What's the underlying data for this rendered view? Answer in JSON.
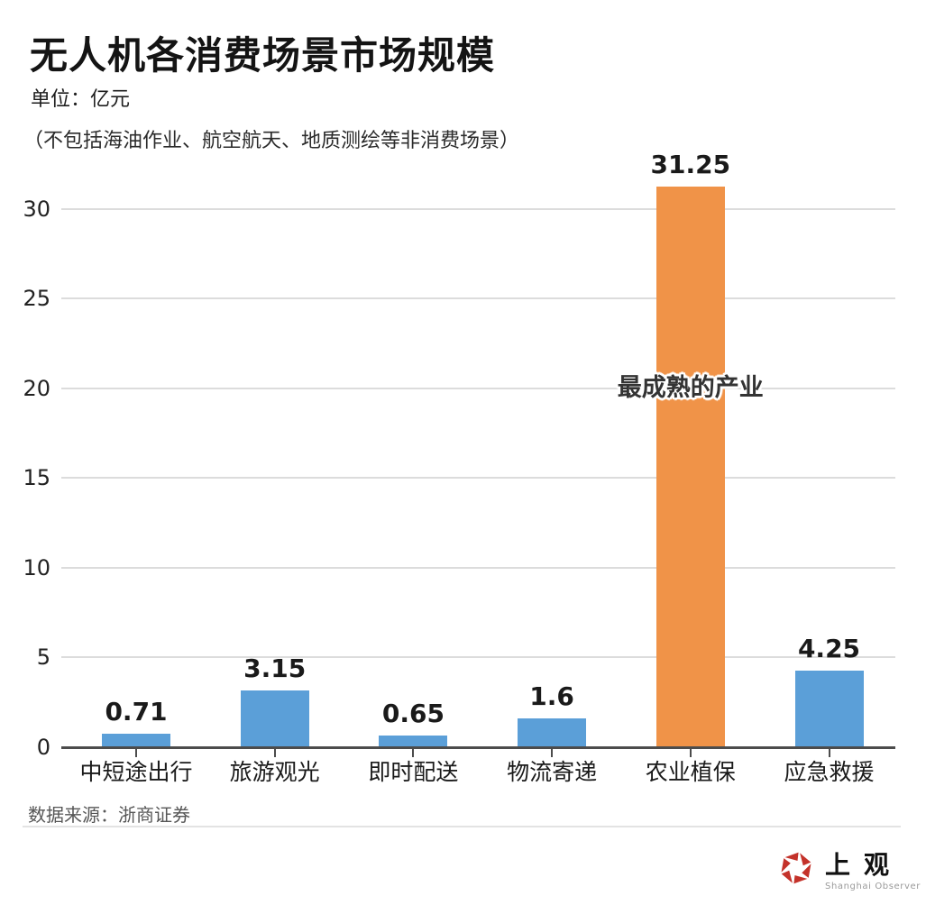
{
  "title": "无人机各消费场景市场规模",
  "unit_label": "单位：亿元",
  "note": "（不包括海油作业、航空航天、地质测绘等非消费场景）",
  "source": "数据来源：浙商证券",
  "logo": {
    "cn": "上观",
    "en": "Shanghai Observer",
    "brand_color": "#C4322A"
  },
  "chart_data": {
    "type": "bar",
    "title": "无人机各消费场景市场规模",
    "xlabel": "",
    "ylabel": "亿元",
    "categories": [
      "中短途出行",
      "旅游观光",
      "即时配送",
      "物流寄递",
      "农业植保",
      "应急救援"
    ],
    "values": [
      0.71,
      3.15,
      0.65,
      1.6,
      31.25,
      4.25
    ],
    "value_labels": [
      "0.71",
      "3.15",
      "0.65",
      "1.6",
      "31.25",
      "4.25"
    ],
    "yticks": [
      0,
      5,
      10,
      15,
      20,
      25,
      30
    ],
    "ylim": [
      0,
      32
    ],
    "grid": true,
    "legend": "none",
    "bar_color": "#5B9FD8",
    "highlight_color": "#F09348",
    "highlight_index": 4,
    "annotation": {
      "text": "最成熟的产业",
      "category_index": 4,
      "y_value": 20
    }
  }
}
